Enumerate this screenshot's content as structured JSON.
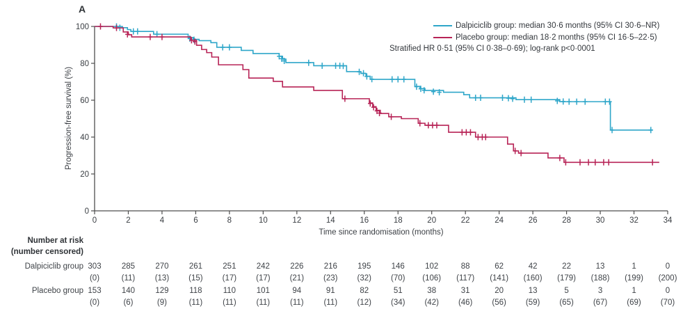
{
  "panel_label": "A",
  "colors": {
    "dalpiciclib": "#2EA6C9",
    "placebo": "#B72356",
    "axis": "#4e4e4e",
    "text": "#3a3e43"
  },
  "y_axis": {
    "label": "Progression-free survival (%)",
    "ticks": [
      0,
      20,
      40,
      60,
      80,
      100
    ]
  },
  "x_axis": {
    "label": "Time since randomisation (months)",
    "ticks": [
      0,
      2,
      4,
      6,
      8,
      10,
      12,
      14,
      16,
      18,
      20,
      22,
      24,
      26,
      28,
      30,
      32,
      34
    ]
  },
  "legend": {
    "items": [
      {
        "name": "dalpiciclib",
        "label": "Dalpiciclib group: median 30·6 months (95% CI 30·6–NR)",
        "color": "#2EA6C9"
      },
      {
        "name": "placebo",
        "label": "Placebo group: median 18·2 months (95% CI 16·5–22·5)",
        "color": "#B72356"
      }
    ],
    "note": "Stratified HR 0·51 (95% CI 0·38–0·69); log-rank p<0·0001"
  },
  "chart_data": {
    "type": "line",
    "subtype": "kaplan-meier-step",
    "xlabel": "Time since randomisation (months)",
    "ylabel": "Progression-free survival (%)",
    "xlim": [
      0,
      34
    ],
    "ylim": [
      0,
      100
    ],
    "grid": false,
    "legend_position": "top-right",
    "series": [
      {
        "name": "Dalpiciclib group",
        "color": "#2EA6C9",
        "median_months": "30·6",
        "ci": "30·6–NR",
        "end_t": 33.1,
        "steps": [
          [
            0,
            100
          ],
          [
            1.65,
            99.3
          ],
          [
            1.95,
            98.3
          ],
          [
            2.15,
            97.3
          ],
          [
            3.5,
            95.8
          ],
          [
            5.55,
            94
          ],
          [
            5.85,
            93
          ],
          [
            6.2,
            92.3
          ],
          [
            6.9,
            91.2
          ],
          [
            7.25,
            88.7
          ],
          [
            8.7,
            87
          ],
          [
            9.4,
            85.3
          ],
          [
            10.95,
            83.8
          ],
          [
            11.15,
            82.3
          ],
          [
            11.35,
            80.4
          ],
          [
            13,
            78.7
          ],
          [
            14.95,
            75.5
          ],
          [
            15.8,
            74.5
          ],
          [
            16.1,
            73
          ],
          [
            16.35,
            71.3
          ],
          [
            19,
            67.5
          ],
          [
            19.3,
            66.3
          ],
          [
            19.6,
            65.3
          ],
          [
            20.7,
            64.3
          ],
          [
            21.9,
            63
          ],
          [
            22.25,
            61.3
          ],
          [
            25,
            60.3
          ],
          [
            27.6,
            59.2
          ],
          [
            30.6,
            43.8
          ]
        ],
        "censors": [
          [
            1.3,
            100
          ],
          [
            1.5,
            99.3
          ],
          [
            2.3,
            97.3
          ],
          [
            2.55,
            97.3
          ],
          [
            3.7,
            95.8
          ],
          [
            5.65,
            93.4
          ],
          [
            5.9,
            92.8
          ],
          [
            7.6,
            88.7
          ],
          [
            8,
            88.7
          ],
          [
            10.95,
            83.8
          ],
          [
            11.1,
            82.5
          ],
          [
            11.25,
            81.3
          ],
          [
            12.7,
            80.3
          ],
          [
            13.5,
            78.7
          ],
          [
            14.3,
            78.7
          ],
          [
            14.55,
            78.7
          ],
          [
            14.75,
            78.6
          ],
          [
            15.7,
            75.4
          ],
          [
            15.95,
            74.6
          ],
          [
            16.15,
            72.9
          ],
          [
            16.45,
            71.4
          ],
          [
            17.65,
            71.3
          ],
          [
            18,
            71.3
          ],
          [
            18.35,
            71.3
          ],
          [
            19.1,
            67.3
          ],
          [
            19.35,
            66.2
          ],
          [
            19.55,
            65.4
          ],
          [
            20.1,
            64.6
          ],
          [
            20.45,
            64.3
          ],
          [
            22.6,
            61.3
          ],
          [
            22.9,
            61.3
          ],
          [
            24.2,
            61.3
          ],
          [
            24.55,
            61.1
          ],
          [
            24.8,
            60.8
          ],
          [
            25.5,
            60.3
          ],
          [
            25.9,
            60.3
          ],
          [
            27.45,
            59.6
          ],
          [
            27.8,
            59.3
          ],
          [
            28.15,
            59.2
          ],
          [
            28.6,
            59.2
          ],
          [
            29.1,
            59.2
          ],
          [
            30.3,
            59.2
          ],
          [
            30.55,
            59.2
          ],
          [
            30.7,
            43.8
          ],
          [
            33,
            43.8
          ]
        ]
      },
      {
        "name": "Placebo group",
        "color": "#B72356",
        "median_months": "18·2",
        "ci": "16·5–22·5",
        "end_t": 33.5,
        "steps": [
          [
            0,
            100
          ],
          [
            1.1,
            99.2
          ],
          [
            1.7,
            97
          ],
          [
            2,
            95.5
          ],
          [
            2.2,
            94.3
          ],
          [
            5.7,
            92.5
          ],
          [
            6.05,
            89.8
          ],
          [
            6.35,
            87.5
          ],
          [
            6.65,
            85.8
          ],
          [
            6.95,
            83.4
          ],
          [
            7.35,
            79.2
          ],
          [
            8.8,
            76.6
          ],
          [
            9.15,
            72
          ],
          [
            10.6,
            70.2
          ],
          [
            11.15,
            67.2
          ],
          [
            13,
            65.3
          ],
          [
            14.7,
            60.8
          ],
          [
            16.3,
            58.5
          ],
          [
            16.5,
            56.5
          ],
          [
            16.7,
            54.5
          ],
          [
            16.95,
            52.8
          ],
          [
            17.45,
            51
          ],
          [
            18.2,
            50
          ],
          [
            19.2,
            47.5
          ],
          [
            19.6,
            46.4
          ],
          [
            21,
            42.6
          ],
          [
            22.6,
            40
          ],
          [
            24.5,
            36.2
          ],
          [
            24.85,
            32.5
          ],
          [
            25.15,
            31.3
          ],
          [
            26.9,
            28.7
          ],
          [
            27.85,
            26.3
          ]
        ],
        "censors": [
          [
            0.35,
            100
          ],
          [
            1.3,
            99.2
          ],
          [
            1.95,
            95.7
          ],
          [
            3.3,
            94.3
          ],
          [
            4,
            94.3
          ],
          [
            5.75,
            92.5
          ],
          [
            5.95,
            91.8
          ],
          [
            14.85,
            60.8
          ],
          [
            16.35,
            58.2
          ],
          [
            16.55,
            56.2
          ],
          [
            16.75,
            54.2
          ],
          [
            16.9,
            53
          ],
          [
            17.6,
            51
          ],
          [
            19.3,
            47.5
          ],
          [
            19.8,
            46.4
          ],
          [
            20.05,
            46.4
          ],
          [
            20.3,
            46.4
          ],
          [
            21.8,
            42.6
          ],
          [
            22.05,
            42.6
          ],
          [
            22.3,
            42.6
          ],
          [
            22.75,
            40
          ],
          [
            23,
            40
          ],
          [
            23.2,
            40
          ],
          [
            24.95,
            32.5
          ],
          [
            25.3,
            31.3
          ],
          [
            27.6,
            28.7
          ],
          [
            27.95,
            26.3
          ],
          [
            28.8,
            26.3
          ],
          [
            29.3,
            26.3
          ],
          [
            29.7,
            26.3
          ],
          [
            30.2,
            26.3
          ],
          [
            30.5,
            26.3
          ],
          [
            33.1,
            26.3
          ]
        ]
      }
    ]
  },
  "at_risk_table": {
    "header_line1": "Number at risk",
    "header_line2": "(number censored)",
    "time_points": [
      0,
      2,
      4,
      6,
      8,
      10,
      12,
      14,
      16,
      18,
      20,
      22,
      24,
      26,
      28,
      30,
      32,
      34
    ],
    "rows": [
      {
        "label": "Dalpiciclib group",
        "at_risk": [
          303,
          285,
          270,
          261,
          251,
          242,
          226,
          216,
          195,
          146,
          102,
          88,
          62,
          42,
          22,
          13,
          1,
          0
        ],
        "censored": [
          0,
          11,
          13,
          15,
          17,
          17,
          21,
          23,
          32,
          70,
          106,
          117,
          141,
          160,
          179,
          188,
          199,
          200
        ]
      },
      {
        "label": "Placebo group",
        "at_risk": [
          153,
          140,
          129,
          118,
          110,
          101,
          94,
          91,
          82,
          51,
          38,
          31,
          20,
          13,
          5,
          3,
          1,
          0
        ],
        "censored": [
          0,
          6,
          9,
          11,
          11,
          11,
          11,
          11,
          12,
          34,
          42,
          46,
          56,
          59,
          65,
          67,
          69,
          70
        ]
      }
    ]
  }
}
